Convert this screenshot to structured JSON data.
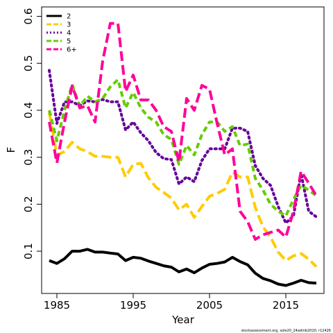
{
  "chart_data": {
    "type": "line",
    "xlabel": "Year",
    "ylabel": "F",
    "xlim": [
      1983,
      2020
    ],
    "ylim": [
      0.01,
      0.62
    ],
    "xticks": [
      1985,
      1995,
      2005,
      2015
    ],
    "yticks": [
      0.1,
      0.2,
      0.3,
      0.4,
      0.5,
      0.6
    ],
    "legend_position": "top-left",
    "credit": "stockassessment.org, sole20_24admb2020, r12426",
    "x": [
      1984,
      1985,
      1986,
      1987,
      1988,
      1989,
      1990,
      1991,
      1992,
      1993,
      1994,
      1995,
      1996,
      1997,
      1998,
      1999,
      2000,
      2001,
      2002,
      2003,
      2004,
      2005,
      2006,
      2007,
      2008,
      2009,
      2010,
      2011,
      2012,
      2013,
      2014,
      2015,
      2016,
      2017,
      2018,
      2019
    ],
    "series": [
      {
        "name": "2",
        "color": "#000000",
        "dash": "solid",
        "values": [
          0.08,
          0.074,
          0.084,
          0.1,
          0.1,
          0.104,
          0.098,
          0.098,
          0.096,
          0.094,
          0.08,
          0.087,
          0.085,
          0.079,
          0.074,
          0.069,
          0.066,
          0.056,
          0.062,
          0.054,
          0.064,
          0.072,
          0.074,
          0.077,
          0.087,
          0.078,
          0.071,
          0.053,
          0.042,
          0.037,
          0.03,
          0.027,
          0.032,
          0.038,
          0.033,
          0.032
        ]
      },
      {
        "name": "3",
        "color": "#ffcc00",
        "dash": "longdash",
        "values": [
          0.395,
          0.305,
          0.312,
          0.332,
          0.318,
          0.312,
          0.302,
          0.302,
          0.3,
          0.3,
          0.258,
          0.285,
          0.287,
          0.256,
          0.236,
          0.225,
          0.213,
          0.188,
          0.2,
          0.172,
          0.195,
          0.217,
          0.223,
          0.232,
          0.268,
          0.258,
          0.258,
          0.193,
          0.152,
          0.13,
          0.098,
          0.08,
          0.09,
          0.095,
          0.083,
          0.067
        ]
      },
      {
        "name": "4",
        "color": "#660099",
        "dash": "dotted",
        "values": [
          0.485,
          0.372,
          0.418,
          0.418,
          0.41,
          0.42,
          0.418,
          0.423,
          0.418,
          0.418,
          0.358,
          0.375,
          0.352,
          0.335,
          0.31,
          0.297,
          0.295,
          0.243,
          0.258,
          0.248,
          0.293,
          0.318,
          0.318,
          0.318,
          0.362,
          0.362,
          0.355,
          0.282,
          0.255,
          0.24,
          0.195,
          0.16,
          0.175,
          0.265,
          0.185,
          0.173
        ]
      },
      {
        "name": "5",
        "color": "#66cc00",
        "dash": "dashed",
        "values": [
          0.4,
          0.335,
          0.4,
          0.455,
          0.408,
          0.43,
          0.418,
          0.425,
          0.45,
          0.465,
          0.405,
          0.438,
          0.405,
          0.385,
          0.375,
          0.348,
          0.338,
          0.285,
          0.325,
          0.305,
          0.348,
          0.375,
          0.375,
          0.355,
          0.365,
          0.325,
          0.328,
          0.255,
          0.23,
          0.2,
          0.185,
          0.175,
          0.21,
          0.24,
          0.23,
          0.218
        ]
      },
      {
        "name": "6+",
        "color": "#ff0099",
        "dash": "longdash",
        "values": [
          0.375,
          0.288,
          0.375,
          0.452,
          0.405,
          0.41,
          0.375,
          0.505,
          0.585,
          0.585,
          0.44,
          0.475,
          0.422,
          0.422,
          0.4,
          0.365,
          0.355,
          0.29,
          0.425,
          0.4,
          0.453,
          0.445,
          0.372,
          0.305,
          0.318,
          0.185,
          0.163,
          0.125,
          0.135,
          0.14,
          0.145,
          0.13,
          0.185,
          0.27,
          0.245,
          0.218
        ]
      }
    ]
  }
}
